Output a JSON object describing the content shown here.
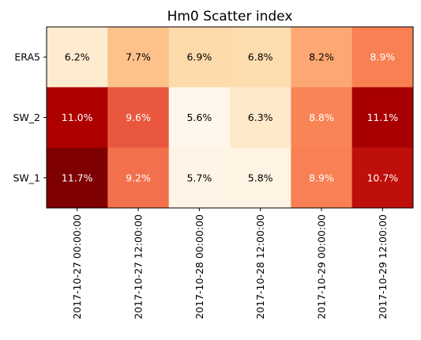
{
  "chart_data": {
    "type": "heatmap",
    "title": "Hm0 Scatter index",
    "xlabel": "",
    "ylabel": "",
    "x_categories": [
      "2017-10-27 00:00:00",
      "2017-10-27 12:00:00",
      "2017-10-28 00:00:00",
      "2017-10-28 12:00:00",
      "2017-10-29 00:00:00",
      "2017-10-29 12:00:00"
    ],
    "y_categories": [
      "ERA5",
      "SW_2",
      "SW_1"
    ],
    "values": [
      [
        6.2,
        7.7,
        6.9,
        6.8,
        8.2,
        8.9
      ],
      [
        11.0,
        9.6,
        5.6,
        6.3,
        8.8,
        11.1
      ],
      [
        11.7,
        9.2,
        5.7,
        5.8,
        8.9,
        10.7
      ]
    ],
    "labels": [
      [
        "6.2%",
        "7.7%",
        "6.9%",
        "6.8%",
        "8.2%",
        "8.9%"
      ],
      [
        "11.0%",
        "9.6%",
        "5.6%",
        "6.3%",
        "8.8%",
        "11.1%"
      ],
      [
        "11.7%",
        "9.2%",
        "5.7%",
        "5.8%",
        "8.9%",
        "10.7%"
      ]
    ],
    "colormap": "OrRd",
    "vmin": 5.6,
    "vmax": 11.7,
    "x_tick_rotation": 90,
    "legend": "none",
    "grid": false
  }
}
